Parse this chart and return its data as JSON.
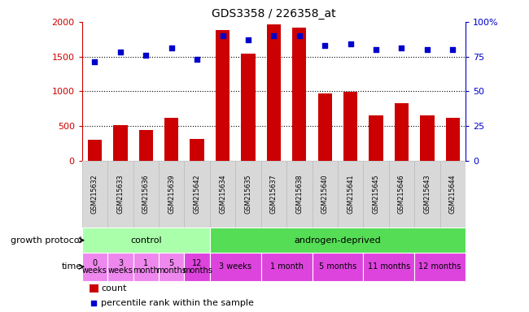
{
  "title": "GDS3358 / 226358_at",
  "samples": [
    "GSM215632",
    "GSM215633",
    "GSM215636",
    "GSM215639",
    "GSM215642",
    "GSM215634",
    "GSM215635",
    "GSM215637",
    "GSM215638",
    "GSM215640",
    "GSM215641",
    "GSM215645",
    "GSM215646",
    "GSM215643",
    "GSM215644"
  ],
  "counts": [
    300,
    510,
    440,
    620,
    310,
    1880,
    1540,
    1960,
    1920,
    970,
    990,
    650,
    830,
    650,
    620
  ],
  "percentile": [
    71,
    78,
    76,
    81,
    73,
    90,
    87,
    90,
    90,
    83,
    84,
    80,
    81,
    80,
    80
  ],
  "ylim_left": [
    0,
    2000
  ],
  "ylim_right": [
    0,
    100
  ],
  "yticks_left": [
    0,
    500,
    1000,
    1500,
    2000
  ],
  "yticks_right": [
    0,
    25,
    50,
    75,
    100
  ],
  "bar_color": "#cc0000",
  "dot_color": "#0000cc",
  "bar_width": 0.55,
  "dot_size": 22,
  "grid_dotted_vals": [
    500,
    1000,
    1500
  ],
  "title_fontsize": 10,
  "tick_fontsize": 8,
  "sample_fontsize": 5.8,
  "proto_fontsize": 8,
  "time_fontsize": 7.5,
  "legend_fontsize": 8,
  "label_fontsize": 8,
  "tick_label_color_left": "#cc0000",
  "tick_label_color_right": "#0000cc",
  "bg_color": "#ffffff",
  "sample_bg": "#d8d8d8",
  "sample_border": "#bbbbbb",
  "control_color": "#aaffaa",
  "androgen_color": "#55dd55",
  "time_light": "#ee88ee",
  "time_dark": "#dd44dd",
  "legend_count": "count",
  "legend_pct": "percentile rank within the sample",
  "xlabel_protocol": "growth protocol",
  "xlabel_time": "time",
  "proto_groups": [
    {
      "label": "control",
      "start": 0,
      "end": 5,
      "color": "#aaffaa"
    },
    {
      "label": "androgen-deprived",
      "start": 5,
      "end": 15,
      "color": "#55dd55"
    }
  ],
  "time_groups": [
    {
      "label": "0\nweeks",
      "start": 0,
      "end": 1,
      "color": "#ee88ee"
    },
    {
      "label": "3\nweeks",
      "start": 1,
      "end": 2,
      "color": "#ee88ee"
    },
    {
      "label": "1\nmonth",
      "start": 2,
      "end": 3,
      "color": "#ee88ee"
    },
    {
      "label": "5\nmonths",
      "start": 3,
      "end": 4,
      "color": "#ee88ee"
    },
    {
      "label": "12\nmonths",
      "start": 4,
      "end": 5,
      "color": "#dd44dd"
    },
    {
      "label": "3 weeks",
      "start": 5,
      "end": 7,
      "color": "#dd44dd"
    },
    {
      "label": "1 month",
      "start": 7,
      "end": 9,
      "color": "#dd44dd"
    },
    {
      "label": "5 months",
      "start": 9,
      "end": 11,
      "color": "#dd44dd"
    },
    {
      "label": "11 months",
      "start": 11,
      "end": 13,
      "color": "#dd44dd"
    },
    {
      "label": "12 months",
      "start": 13,
      "end": 15,
      "color": "#dd44dd"
    }
  ]
}
